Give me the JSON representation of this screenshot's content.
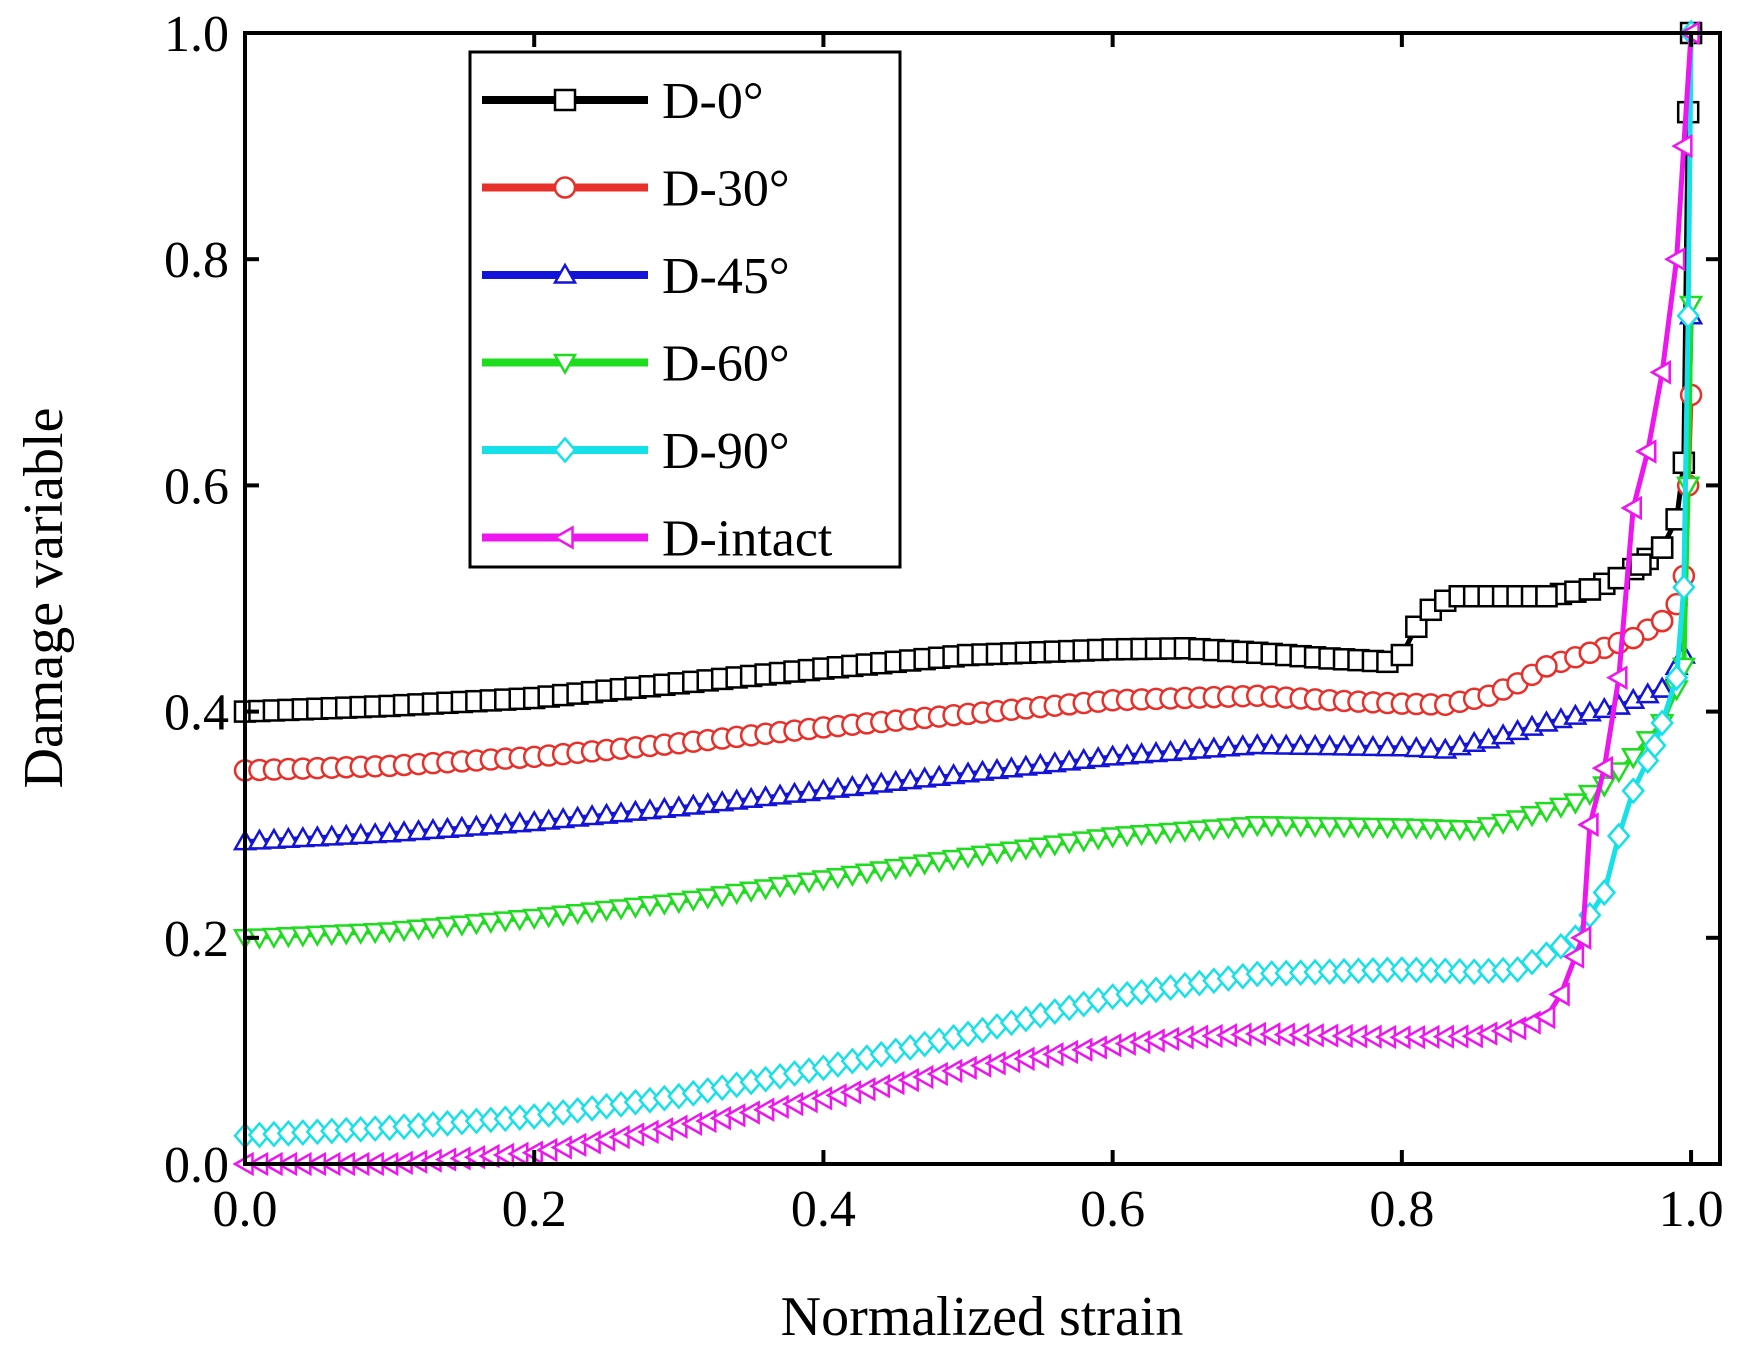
{
  "chart_data": {
    "type": "line",
    "title": "",
    "xlabel": "Normalized strain",
    "ylabel": "Damage variable",
    "xlim": [
      0,
      1.02
    ],
    "ylim": [
      0,
      1.0
    ],
    "xticks": [
      "0.0",
      "0.2",
      "0.4",
      "0.6",
      "0.8",
      "1.0"
    ],
    "yticks": [
      "0.0",
      "0.2",
      "0.4",
      "0.6",
      "0.8",
      "1.0"
    ],
    "legend_position": "top-left",
    "grid": false,
    "series": [
      {
        "name": "D-0°",
        "color": "#000000",
        "marker": "square",
        "points": [
          [
            0,
            0.4
          ],
          [
            0.1,
            0.405
          ],
          [
            0.2,
            0.412
          ],
          [
            0.3,
            0.425
          ],
          [
            0.4,
            0.438
          ],
          [
            0.5,
            0.45
          ],
          [
            0.6,
            0.455
          ],
          [
            0.65,
            0.456
          ],
          [
            0.7,
            0.452
          ],
          [
            0.75,
            0.447
          ],
          [
            0.79,
            0.444
          ],
          [
            0.8,
            0.45
          ],
          [
            0.81,
            0.475
          ],
          [
            0.82,
            0.49
          ],
          [
            0.835,
            0.502
          ],
          [
            0.86,
            0.502
          ],
          [
            0.9,
            0.502
          ],
          [
            0.93,
            0.508
          ],
          [
            0.95,
            0.518
          ],
          [
            0.965,
            0.53
          ],
          [
            0.98,
            0.545
          ],
          [
            0.99,
            0.57
          ],
          [
            0.995,
            0.62
          ],
          [
            0.998,
            0.93
          ],
          [
            1.0,
            1.0
          ]
        ]
      },
      {
        "name": "D-30°",
        "color": "#e8302a",
        "marker": "circle",
        "points": [
          [
            0,
            0.348
          ],
          [
            0.1,
            0.352
          ],
          [
            0.2,
            0.36
          ],
          [
            0.3,
            0.372
          ],
          [
            0.4,
            0.386
          ],
          [
            0.5,
            0.398
          ],
          [
            0.6,
            0.41
          ],
          [
            0.7,
            0.414
          ],
          [
            0.75,
            0.41
          ],
          [
            0.8,
            0.407
          ],
          [
            0.83,
            0.406
          ],
          [
            0.86,
            0.414
          ],
          [
            0.88,
            0.425
          ],
          [
            0.9,
            0.44
          ],
          [
            0.93,
            0.452
          ],
          [
            0.96,
            0.465
          ],
          [
            0.98,
            0.48
          ],
          [
            0.99,
            0.495
          ],
          [
            0.995,
            0.52
          ],
          [
            0.998,
            0.6
          ],
          [
            1.0,
            0.68
          ]
        ]
      },
      {
        "name": "D-45°",
        "color": "#1414d8",
        "marker": "triangle-up",
        "points": [
          [
            0,
            0.285
          ],
          [
            0.1,
            0.292
          ],
          [
            0.2,
            0.302
          ],
          [
            0.3,
            0.315
          ],
          [
            0.4,
            0.33
          ],
          [
            0.5,
            0.345
          ],
          [
            0.6,
            0.36
          ],
          [
            0.7,
            0.37
          ],
          [
            0.8,
            0.368
          ],
          [
            0.83,
            0.366
          ],
          [
            0.86,
            0.375
          ],
          [
            0.9,
            0.39
          ],
          [
            0.95,
            0.405
          ],
          [
            0.98,
            0.42
          ],
          [
            0.99,
            0.44
          ],
          [
            0.995,
            0.45
          ],
          [
            1.0,
            0.75
          ]
        ]
      },
      {
        "name": "D-60°",
        "color": "#1edc1e",
        "marker": "triangle-down",
        "points": [
          [
            0,
            0.2
          ],
          [
            0.1,
            0.206
          ],
          [
            0.2,
            0.218
          ],
          [
            0.3,
            0.232
          ],
          [
            0.4,
            0.252
          ],
          [
            0.5,
            0.272
          ],
          [
            0.6,
            0.29
          ],
          [
            0.7,
            0.3
          ],
          [
            0.8,
            0.298
          ],
          [
            0.85,
            0.296
          ],
          [
            0.88,
            0.305
          ],
          [
            0.92,
            0.32
          ],
          [
            0.94,
            0.335
          ],
          [
            0.96,
            0.36
          ],
          [
            0.98,
            0.39
          ],
          [
            0.99,
            0.42
          ],
          [
            0.995,
            0.44
          ],
          [
            0.998,
            0.6
          ],
          [
            1.0,
            0.76
          ]
        ]
      },
      {
        "name": "D-90°",
        "color": "#16e0e8",
        "marker": "diamond",
        "points": [
          [
            0,
            0.025
          ],
          [
            0.1,
            0.032
          ],
          [
            0.2,
            0.042
          ],
          [
            0.3,
            0.06
          ],
          [
            0.4,
            0.085
          ],
          [
            0.5,
            0.115
          ],
          [
            0.6,
            0.148
          ],
          [
            0.7,
            0.168
          ],
          [
            0.8,
            0.172
          ],
          [
            0.85,
            0.17
          ],
          [
            0.88,
            0.172
          ],
          [
            0.9,
            0.185
          ],
          [
            0.92,
            0.2
          ],
          [
            0.94,
            0.24
          ],
          [
            0.95,
            0.29
          ],
          [
            0.96,
            0.33
          ],
          [
            0.975,
            0.37
          ],
          [
            0.99,
            0.43
          ],
          [
            0.995,
            0.51
          ],
          [
            0.998,
            0.75
          ],
          [
            1.0,
            1.0
          ]
        ]
      },
      {
        "name": "D-intact",
        "color": "#ee16ee",
        "marker": "triangle-left",
        "points": [
          [
            0,
            0.0
          ],
          [
            0.1,
            0.0
          ],
          [
            0.2,
            0.01
          ],
          [
            0.3,
            0.033
          ],
          [
            0.4,
            0.058
          ],
          [
            0.5,
            0.085
          ],
          [
            0.6,
            0.105
          ],
          [
            0.65,
            0.112
          ],
          [
            0.7,
            0.115
          ],
          [
            0.8,
            0.112
          ],
          [
            0.85,
            0.113
          ],
          [
            0.88,
            0.12
          ],
          [
            0.9,
            0.13
          ],
          [
            0.91,
            0.15
          ],
          [
            0.925,
            0.2
          ],
          [
            0.93,
            0.3
          ],
          [
            0.94,
            0.35
          ],
          [
            0.95,
            0.43
          ],
          [
            0.96,
            0.58
          ],
          [
            0.97,
            0.63
          ],
          [
            0.98,
            0.7
          ],
          [
            0.99,
            0.8
          ],
          [
            0.995,
            0.9
          ],
          [
            1.0,
            1.0
          ]
        ]
      }
    ]
  }
}
